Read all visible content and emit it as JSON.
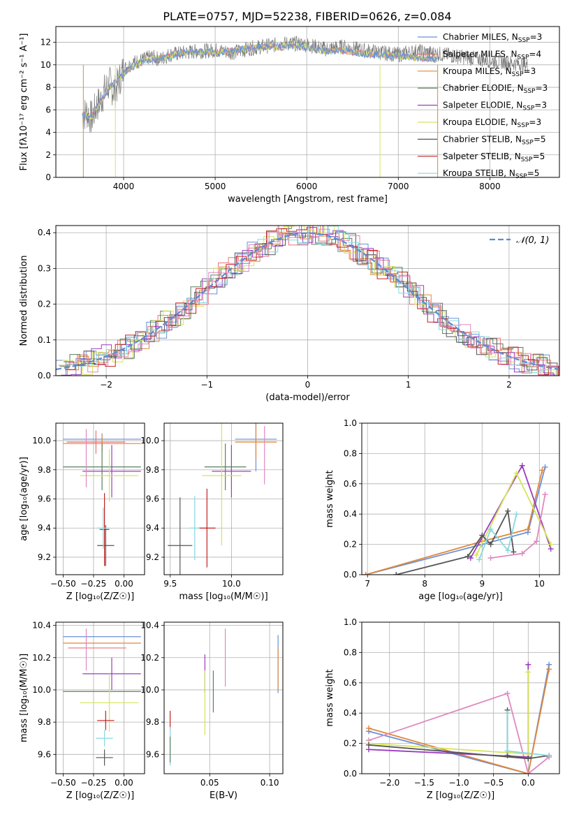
{
  "title": "PLATE=0757, MJD=52238, FIBERID=0626, z=0.084",
  "colors": {
    "chabrier_miles": "#6a8fd8",
    "salpeter_miles": "#e8737a",
    "kroupa_miles": "#e0873a",
    "chabrier_elodie": "#5b7f5e",
    "salpeter_elodie": "#9c3cc0",
    "kroupa_elodie": "#d6e45a",
    "chabrier_stelib": "#555555",
    "salpeter_stelib": "#c0201e",
    "kroupa_stelib": "#86d8e0",
    "pink": "#e088c0",
    "gaussian": "#5b8ad6"
  },
  "chart_data": [
    {
      "type": "line",
      "panel": "spectrum",
      "title": "PLATE=0757, MJD=52238, FIBERID=0626, z=0.084",
      "xlabel": "wavelength [Angstrom, rest frame]",
      "ylabel": "Flux [fλ10⁻¹⁷ erg cm⁻² s⁻¹ A⁻¹]",
      "xlim": [
        3260,
        8760
      ],
      "ylim": [
        0,
        13.4
      ],
      "xticks": [
        "4000",
        "5000",
        "6000",
        "7000",
        "8000"
      ],
      "yticks": [
        "0",
        "2",
        "4",
        "6",
        "8",
        "10",
        "12"
      ],
      "legend_position": "upper right",
      "legend": [
        "Chabrier MILES, N_SSP=3",
        "Salpeter MILES, N_SSP=4",
        "Kroupa MILES, N_SSP=3",
        "Chabrier ELODIE, N_SSP=3",
        "Salpeter ELODIE, N_SSP=3",
        "Kroupa ELODIE, N_SSP=3",
        "Chabrier STELIB, N_SSP=5",
        "Salpeter STELIB, N_SSP=5",
        "Kroupa STELIB, N_SSP=5"
      ],
      "data_curve": {
        "x": [
          3550,
          3600,
          3650,
          3700,
          3750,
          3800,
          3850,
          3900,
          3950,
          4000,
          4100,
          4200,
          4300,
          4400,
          4500,
          4600,
          4800,
          5000,
          5200,
          5400,
          5600,
          5800,
          6000,
          6200,
          6400,
          6600,
          6800,
          7000,
          7200,
          7400,
          7600,
          7800,
          8000,
          8200,
          8400
        ],
        "y": [
          5.5,
          5.8,
          5.2,
          6.3,
          6.8,
          7.9,
          8.3,
          7.5,
          8.6,
          9.6,
          10.2,
          10.4,
          10.7,
          10.5,
          10.9,
          11.0,
          11.2,
          11.3,
          11.1,
          11.5,
          11.7,
          11.9,
          11.8,
          11.4,
          11.6,
          11.3,
          11.1,
          10.9,
          11.2,
          11.0,
          10.8,
          10.6,
          10.4,
          10.2,
          10.0
        ]
      },
      "model_curve": {
        "x": [
          3550,
          3650,
          3750,
          3850,
          3950,
          4050,
          4200,
          4400,
          4600,
          4800,
          5000,
          5200,
          5400,
          5600,
          5800,
          6000,
          6200,
          6400,
          6600,
          6800,
          7000,
          7200,
          7400
        ],
        "y": [
          5.6,
          5.4,
          6.8,
          8.0,
          8.8,
          9.6,
          10.3,
          10.6,
          11.0,
          11.2,
          11.1,
          11.3,
          11.5,
          11.6,
          11.7,
          11.6,
          11.2,
          11.3,
          11.0,
          10.9,
          10.8,
          10.6,
          10.5
        ]
      }
    },
    {
      "type": "line",
      "panel": "residual-distribution",
      "xlabel": "(data-model)/error",
      "ylabel": "Normed distribution",
      "xlim": [
        -2.5,
        2.5
      ],
      "ylim": [
        0,
        0.42
      ],
      "xticks": [
        "−2",
        "−1",
        "0",
        "1",
        "2"
      ],
      "yticks": [
        "0.0",
        "0.1",
        "0.2",
        "0.3",
        "0.4"
      ],
      "legend_position": "upper right",
      "legend": [
        "𝒩(0, 1)"
      ],
      "series": [
        {
          "name": "𝒩(0, 1)",
          "function": "gaussian",
          "mean": 0,
          "sigma": 1
        }
      ]
    },
    {
      "type": "scatter",
      "panel": "age-vs-Z",
      "xlabel": "Z [log₁₀(Z/Z☉)]",
      "ylabel": "age  [log₁₀(age/yr)]",
      "xlim": [
        -0.56,
        0.17
      ],
      "ylim": [
        9.08,
        10.12
      ],
      "xticks": [
        "−0.50",
        "−0.25",
        "0.00"
      ],
      "yticks": [
        "9.2",
        "9.4",
        "9.6",
        "9.8",
        "10.0"
      ],
      "points": [
        {
          "x": -0.18,
          "y": 10.01,
          "xerr": 0.32,
          "yerr": 0.04,
          "color": "chabrier_miles"
        },
        {
          "x": -0.23,
          "y": 9.99,
          "xerr": 0.24,
          "yerr": 0.08,
          "color": "salpeter_miles"
        },
        {
          "x": -0.18,
          "y": 9.98,
          "xerr": 0.32,
          "yerr": 0.06,
          "color": "kroupa_miles"
        },
        {
          "x": -0.18,
          "y": 9.82,
          "xerr": 0.32,
          "yerr": 0.16,
          "color": "chabrier_elodie"
        },
        {
          "x": -0.1,
          "y": 9.79,
          "xerr": 0.24,
          "yerr": 0.18,
          "color": "salpeter_elodie"
        },
        {
          "x": -0.12,
          "y": 9.76,
          "xerr": 0.24,
          "yerr": 0.18,
          "color": "kroupa_elodie"
        },
        {
          "x": -0.15,
          "y": 9.28,
          "xerr": 0.07,
          "yerr": 0.14,
          "color": "chabrier_stelib"
        },
        {
          "x": -0.16,
          "y": 9.39,
          "xerr": 0.04,
          "yerr": 0.25,
          "color": "salpeter_stelib"
        },
        {
          "x": -0.17,
          "y": 9.4,
          "xerr": 0.05,
          "yerr": 0.14,
          "color": "kroupa_stelib"
        },
        {
          "x": -0.31,
          "y": 9.88,
          "xerr": 0.0,
          "yerr": 0.2,
          "color": "pink"
        }
      ]
    },
    {
      "type": "scatter",
      "panel": "age-vs-mass",
      "xlabel": "mass [log₁₀(M/M☉)]",
      "ylabel": "",
      "xlim": [
        9.45,
        10.42
      ],
      "ylim": [
        9.08,
        10.12
      ],
      "xticks": [
        "9.5",
        "10.0"
      ],
      "yticks": [
        "9.2",
        "9.4",
        "9.6",
        "9.8",
        "10.0"
      ],
      "points": [
        {
          "x": 10.2,
          "y": 10.01,
          "xerr": 0.17,
          "yerr": 0.22,
          "color": "chabrier_miles"
        },
        {
          "x": 10.2,
          "y": 9.99,
          "xerr": 0.17,
          "yerr": 0.12,
          "color": "kroupa_miles"
        },
        {
          "x": 9.95,
          "y": 9.82,
          "xerr": 0.17,
          "yerr": 0.16,
          "color": "chabrier_elodie"
        },
        {
          "x": 10.0,
          "y": 9.79,
          "xerr": 0.16,
          "yerr": 0.18,
          "color": "salpeter_elodie"
        },
        {
          "x": 9.92,
          "y": 9.76,
          "xerr": 0.16,
          "yerr": 0.48,
          "color": "kroupa_elodie"
        },
        {
          "x": 9.58,
          "y": 9.28,
          "xerr": 0.1,
          "yerr": 0.33,
          "color": "chabrier_stelib"
        },
        {
          "x": 9.8,
          "y": 9.4,
          "xerr": 0.07,
          "yerr": 0.27,
          "color": "salpeter_stelib"
        },
        {
          "x": 9.7,
          "y": 9.4,
          "xerr": 0.04,
          "yerr": 0.22,
          "color": "kroupa_stelib"
        },
        {
          "x": 10.27,
          "y": 9.9,
          "xerr": 0.0,
          "yerr": 0.2,
          "color": "pink"
        }
      ]
    },
    {
      "type": "line",
      "panel": "mass-weight-vs-age",
      "xlabel": "age  [log₁₀(age/yr)]",
      "ylabel": "mass weight",
      "xlim": [
        6.9,
        10.35
      ],
      "ylim": [
        0,
        1.0
      ],
      "xticks": [
        "7",
        "8",
        "9",
        "10"
      ],
      "yticks": [
        "0.0",
        "0.2",
        "0.4",
        "0.6",
        "0.8",
        "1.0"
      ],
      "series": [
        {
          "color": "chabrier_miles",
          "x": [
            6.97,
            9.0,
            9.8,
            10.1
          ],
          "y": [
            0.0,
            0.2,
            0.28,
            0.71
          ]
        },
        {
          "color": "kroupa_miles",
          "x": [
            6.97,
            9.0,
            9.8,
            10.05
          ],
          "y": [
            0.0,
            0.22,
            0.3,
            0.69
          ]
        },
        {
          "color": "salpeter_elodie",
          "x": [
            8.8,
            9.7,
            10.2
          ],
          "y": [
            0.11,
            0.72,
            0.17
          ]
        },
        {
          "color": "kroupa_elodie",
          "x": [
            8.9,
            9.6,
            10.2
          ],
          "y": [
            0.13,
            0.67,
            0.2
          ]
        },
        {
          "color": "chabrier_stelib",
          "x": [
            7.5,
            8.75,
            9.0,
            9.15,
            9.45,
            9.55
          ],
          "y": [
            0.0,
            0.12,
            0.26,
            0.2,
            0.42,
            0.15
          ]
        },
        {
          "color": "kroupa_stelib",
          "x": [
            8.95,
            9.15,
            9.45,
            9.6
          ],
          "y": [
            0.1,
            0.3,
            0.16,
            0.4
          ]
        },
        {
          "color": "pink",
          "x": [
            9.15,
            9.7,
            9.95,
            10.1
          ],
          "y": [
            0.11,
            0.14,
            0.22,
            0.53
          ]
        }
      ]
    },
    {
      "type": "scatter",
      "panel": "mass-vs-Z",
      "xlabel": "Z [log₁₀(Z/Z☉)]",
      "ylabel": "mass [log₁₀(M/M☉)]",
      "xlim": [
        -0.56,
        0.17
      ],
      "ylim": [
        9.48,
        10.42
      ],
      "xticks": [
        "−0.50",
        "−0.25",
        "0.00"
      ],
      "yticks": [
        "9.6",
        "9.8",
        "10.0",
        "10.2",
        "10.4"
      ],
      "points": [
        {
          "x": -0.18,
          "y": 10.33,
          "xerr": 0.32,
          "yerr": 0.0,
          "color": "chabrier_miles"
        },
        {
          "x": -0.18,
          "y": 10.29,
          "xerr": 0.32,
          "yerr": 0.0,
          "color": "kroupa_miles"
        },
        {
          "x": -0.22,
          "y": 10.26,
          "xerr": 0.24,
          "yerr": 0.0,
          "color": "salpeter_miles"
        },
        {
          "x": -0.1,
          "y": 10.1,
          "xerr": 0.24,
          "yerr": 0.1,
          "color": "salpeter_elodie"
        },
        {
          "x": -0.18,
          "y": 9.99,
          "xerr": 0.32,
          "yerr": 0.0,
          "color": "chabrier_elodie"
        },
        {
          "x": -0.12,
          "y": 9.92,
          "xerr": 0.24,
          "yerr": 0.18,
          "color": "kroupa_elodie"
        },
        {
          "x": -0.15,
          "y": 9.81,
          "xerr": 0.07,
          "yerr": 0.06,
          "color": "salpeter_stelib"
        },
        {
          "x": -0.16,
          "y": 9.7,
          "xerr": 0.07,
          "yerr": 0.05,
          "color": "kroupa_stelib"
        },
        {
          "x": -0.16,
          "y": 9.58,
          "xerr": 0.07,
          "yerr": 0.05,
          "color": "chabrier_stelib"
        },
        {
          "x": -0.31,
          "y": 10.25,
          "xerr": 0.0,
          "yerr": 0.13,
          "color": "pink"
        }
      ]
    },
    {
      "type": "scatter",
      "panel": "mass-vs-EBV",
      "xlabel": "E(B-V)",
      "ylabel": "",
      "xlim": [
        0.012,
        0.111
      ],
      "ylim": [
        9.48,
        10.42
      ],
      "xticks": [
        "0.05",
        "0.10"
      ],
      "yticks": [
        "9.6",
        "9.8",
        "10.0",
        "10.2",
        "10.4"
      ],
      "points": [
        {
          "x": 0.107,
          "y": 10.16,
          "yerr": 0.18,
          "color": "chabrier_miles"
        },
        {
          "x": 0.107,
          "y": 10.13,
          "yerr": 0.13,
          "color": "kroupa_miles"
        },
        {
          "x": 0.063,
          "y": 10.2,
          "yerr": 0.18,
          "color": "pink"
        },
        {
          "x": 0.046,
          "y": 10.1,
          "yerr": 0.12,
          "color": "salpeter_elodie"
        },
        {
          "x": 0.053,
          "y": 9.99,
          "yerr": 0.13,
          "color": "chabrier_elodie"
        },
        {
          "x": 0.046,
          "y": 9.92,
          "yerr": 0.2,
          "color": "kroupa_elodie"
        },
        {
          "x": 0.017,
          "y": 9.81,
          "yerr": 0.06,
          "color": "salpeter_stelib"
        },
        {
          "x": 0.017,
          "y": 9.65,
          "yerr": 0.12,
          "color": "kroupa_stelib"
        },
        {
          "x": 0.017,
          "y": 9.63,
          "yerr": 0.08,
          "color": "chabrier_elodie"
        }
      ]
    },
    {
      "type": "line",
      "panel": "mass-weight-vs-Z",
      "xlabel": "Z [log₁₀(Z/Z☉)]",
      "ylabel": "mass weight",
      "xlim": [
        -2.4,
        0.45
      ],
      "ylim": [
        0,
        1.0
      ],
      "xticks": [
        "−2.0",
        "−1.5",
        "−1.0",
        "−0.5",
        "0.0"
      ],
      "yticks": [
        "0.0",
        "0.2",
        "0.4",
        "0.6",
        "0.8",
        "1.0"
      ],
      "series": [
        {
          "color": "chabrier_miles",
          "x": [
            -2.3,
            0.0,
            0.3
          ],
          "y": [
            0.28,
            0.0,
            0.72
          ]
        },
        {
          "color": "kroupa_miles",
          "x": [
            -2.3,
            0.0,
            0.3
          ],
          "y": [
            0.3,
            0.0,
            0.69
          ]
        },
        {
          "color": "pink",
          "x": [
            -2.3,
            -0.3,
            0.0,
            0.3
          ],
          "y": [
            0.22,
            0.53,
            0.0,
            0.11
          ]
        },
        {
          "color": "salpeter_elodie",
          "x": [
            -2.3,
            0.0,
            0.0
          ],
          "y": [
            0.16,
            0.11,
            0.72
          ]
        },
        {
          "color": "kroupa_elodie",
          "x": [
            -2.3,
            0.0,
            0.0
          ],
          "y": [
            0.2,
            0.13,
            0.67
          ]
        },
        {
          "color": "chabrier_stelib",
          "x": [
            -0.3,
            -0.3,
            0.0,
            0.3
          ],
          "y": [
            0.42,
            0.12,
            0.1,
            0.12
          ]
        },
        {
          "color": "kroupa_stelib",
          "x": [
            -0.3,
            -0.3,
            0.3
          ],
          "y": [
            0.4,
            0.15,
            0.12
          ]
        },
        {
          "color": "chabrier_stelib",
          "x": [
            -2.3,
            0.0
          ],
          "y": [
            0.19,
            0.1
          ]
        }
      ]
    }
  ]
}
